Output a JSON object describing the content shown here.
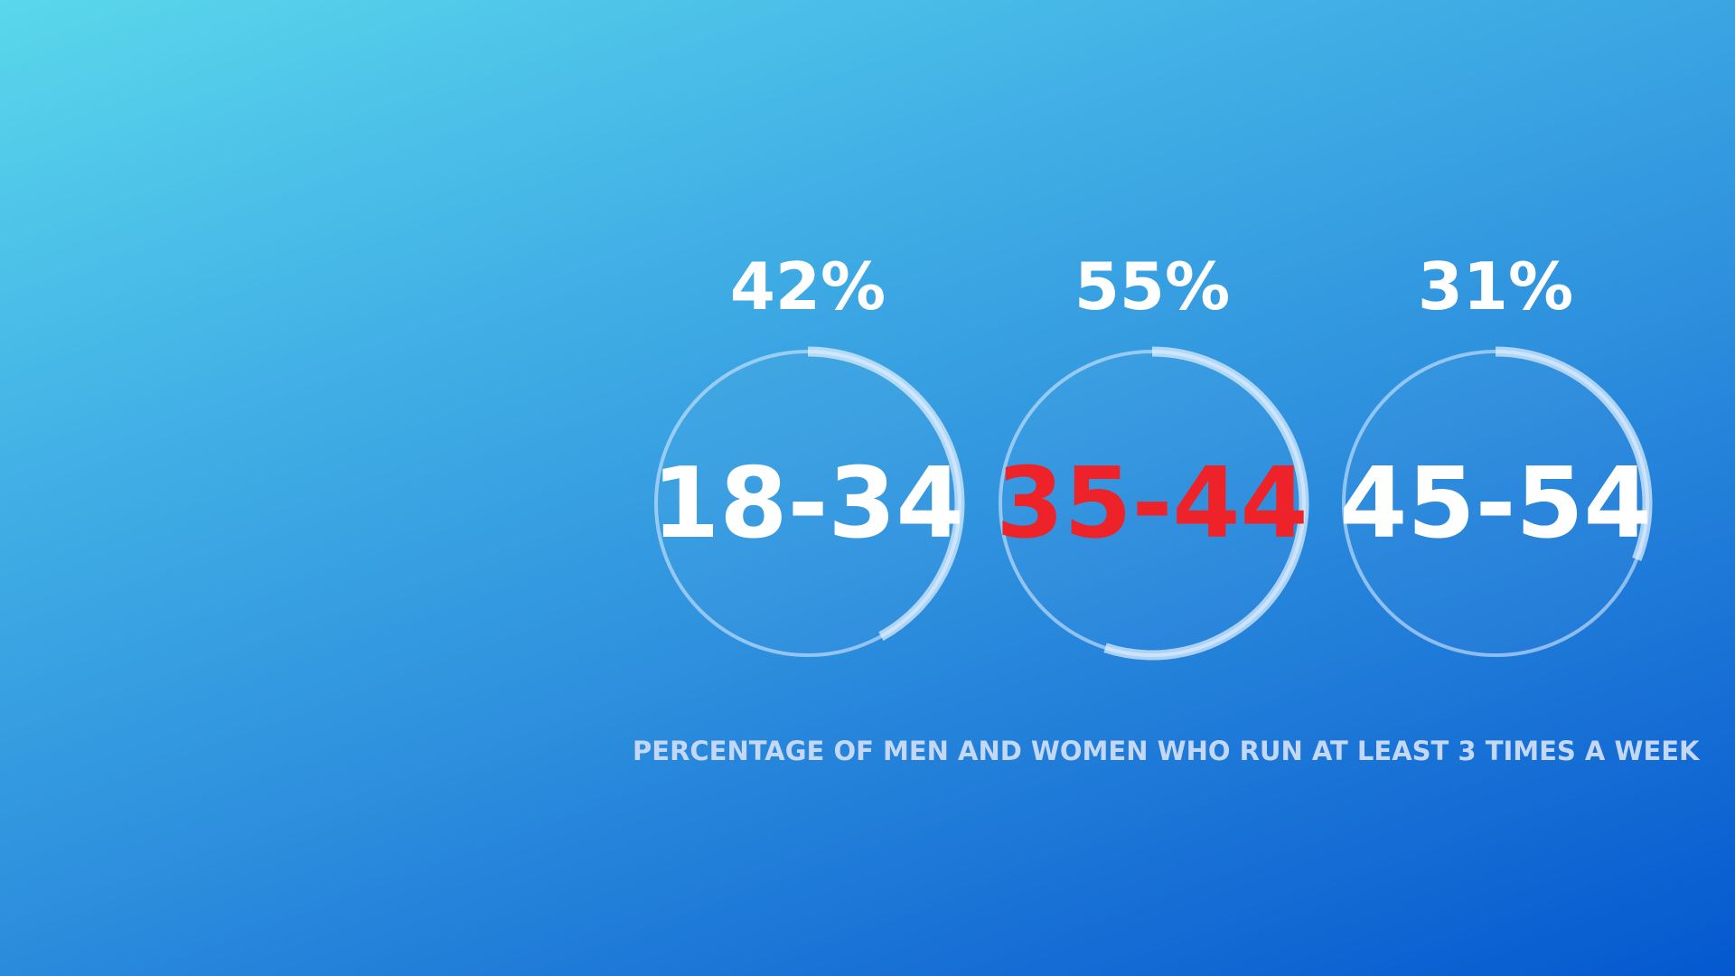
{
  "chart_data": {
    "type": "radial-progress",
    "title": "",
    "caption": "PERCENTAGE OF MEN AND WOMEN WHO RUN AT LEAST 3 TIMES A WEEK",
    "categories": [
      "18-34",
      "35-44",
      "45-54"
    ],
    "values": [
      42,
      55,
      31
    ],
    "value_labels": [
      "42%",
      "55%",
      "31%"
    ],
    "unit": "%",
    "range": [
      0,
      100
    ],
    "highlight_category": "35-44",
    "colors": {
      "label": "#ffffff",
      "highlight": "#ee2229",
      "ring_track": "#d6e9ff",
      "ring_fill": "#e6f2ff",
      "caption": "#c4d8f6"
    }
  }
}
